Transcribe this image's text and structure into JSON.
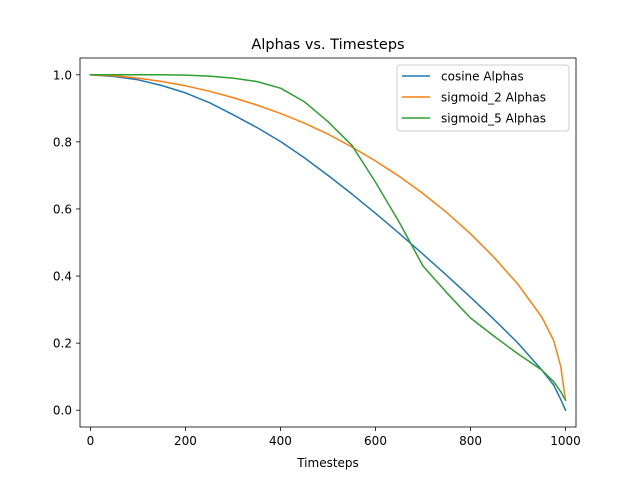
{
  "chart_data": {
    "type": "line",
    "title": "Alphas vs. Timesteps",
    "xlabel": "Timesteps",
    "ylabel": "",
    "xlim": [
      -22,
      1022
    ],
    "ylim": [
      -0.05,
      1.05
    ],
    "xticks": [
      0,
      200,
      400,
      600,
      800,
      1000
    ],
    "yticks": [
      0.0,
      0.2,
      0.4,
      0.6,
      0.8,
      1.0
    ],
    "xtick_labels": [
      "0",
      "200",
      "400",
      "600",
      "800",
      "1000"
    ],
    "ytick_labels": [
      "0.0",
      "0.2",
      "0.4",
      "0.6",
      "0.8",
      "1.0"
    ],
    "grid": false,
    "legend_position": "top-right",
    "x": [
      0,
      50,
      100,
      150,
      200,
      250,
      300,
      350,
      400,
      450,
      500,
      550,
      600,
      650,
      700,
      750,
      800,
      850,
      900,
      950,
      975,
      990,
      1000
    ],
    "series": [
      {
        "name": "cosine Alphas",
        "color": "#1f77b4",
        "values": [
          1.0,
          0.995,
          0.985,
          0.968,
          0.946,
          0.917,
          0.881,
          0.843,
          0.801,
          0.753,
          0.7,
          0.645,
          0.587,
          0.527,
          0.465,
          0.402,
          0.337,
          0.27,
          0.2,
          0.12,
          0.075,
          0.032,
          0.0
        ]
      },
      {
        "name": "sigmoid_2 Alphas",
        "color": "#ff7f0e",
        "values": [
          1.0,
          0.997,
          0.99,
          0.98,
          0.967,
          0.951,
          0.932,
          0.91,
          0.885,
          0.856,
          0.823,
          0.785,
          0.743,
          0.697,
          0.646,
          0.589,
          0.526,
          0.455,
          0.375,
          0.278,
          0.208,
          0.13,
          0.03
        ]
      },
      {
        "name": "sigmoid_5 Alphas",
        "color": "#2ca02c",
        "values": [
          1.0,
          1.0,
          1.0,
          1.0,
          0.999,
          0.996,
          0.99,
          0.98,
          0.96,
          0.92,
          0.86,
          0.79,
          0.68,
          0.56,
          0.43,
          0.35,
          0.275,
          0.22,
          0.168,
          0.12,
          0.085,
          0.055,
          0.03
        ]
      }
    ]
  }
}
